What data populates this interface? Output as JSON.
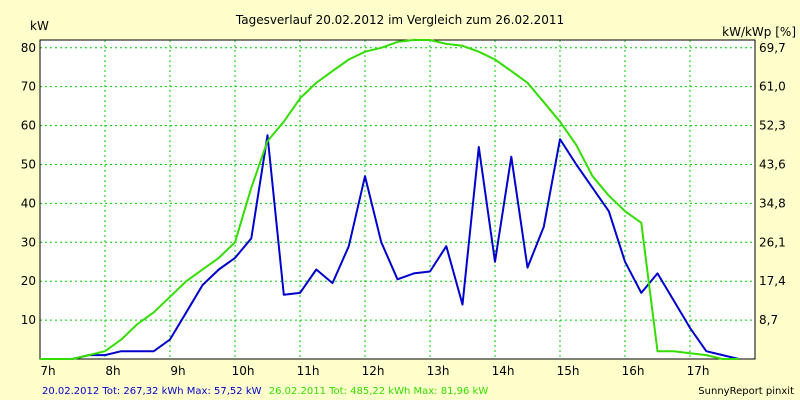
{
  "chart_data": {
    "type": "line",
    "title": "Tagesverlauf 20.02.2012 im Vergleich zum 26.02.2011",
    "ylabel_left": "kW",
    "ylabel_right": "kW/kWp [%]",
    "x_ticks": [
      "7h",
      "8h",
      "9h",
      "10h",
      "11h",
      "12h",
      "13h",
      "14h",
      "15h",
      "16h",
      "17h"
    ],
    "x_range": [
      7,
      18
    ],
    "y_ticks_left": [
      10,
      20,
      30,
      40,
      50,
      60,
      70,
      80
    ],
    "y_ticks_right": [
      "8,7",
      "17,4",
      "26,1",
      "34,8",
      "43,6",
      "52,3",
      "61,0",
      "69,7"
    ],
    "ylim": [
      0,
      82
    ],
    "grid": true,
    "series": [
      {
        "color": "#0000cc",
        "x": [
          7,
          7.25,
          7.5,
          7.75,
          8.0,
          8.25,
          8.5,
          8.75,
          9.0,
          9.25,
          9.5,
          9.75,
          10.0,
          10.25,
          10.5,
          10.75,
          11.0,
          11.25,
          11.5,
          11.75,
          12.0,
          12.25,
          12.5,
          12.75,
          13.0,
          13.25,
          13.5,
          13.75,
          14.0,
          14.25,
          14.5,
          14.75,
          15.0,
          15.25,
          15.5,
          15.75,
          16.0,
          16.25,
          16.5,
          16.75,
          17.0,
          17.25,
          17.5,
          17.75
        ],
        "values": [
          0,
          0,
          0,
          1,
          1,
          2,
          2,
          2,
          5,
          12,
          19,
          23,
          26,
          31,
          57.5,
          16.5,
          17,
          23,
          19.5,
          29,
          47,
          30,
          20.5,
          22,
          22.5,
          29,
          14,
          54.5,
          25,
          52,
          23.5,
          34,
          56.5,
          50,
          44,
          38,
          25,
          17,
          22,
          15,
          8,
          2,
          1,
          0
        ]
      },
      {
        "color": "#33dd00",
        "x": [
          7,
          7.25,
          7.5,
          7.75,
          8.0,
          8.25,
          8.5,
          8.75,
          9.0,
          9.25,
          9.5,
          9.75,
          10.0,
          10.25,
          10.5,
          10.75,
          11.0,
          11.25,
          11.5,
          11.75,
          12.0,
          12.25,
          12.5,
          12.75,
          13.0,
          13.25,
          13.5,
          13.75,
          14.0,
          14.25,
          14.5,
          14.75,
          15.0,
          15.25,
          15.5,
          15.75,
          16.0,
          16.25,
          16.5,
          16.75,
          17.0,
          17.25,
          17.5,
          17.75
        ],
        "values": [
          0,
          0,
          0,
          1,
          2,
          5,
          9,
          12,
          16,
          20,
          23,
          26,
          30,
          44,
          56,
          61,
          67,
          71,
          74,
          77,
          79,
          80,
          81.5,
          82,
          82,
          81,
          80.5,
          79,
          77,
          74,
          71,
          66,
          61,
          55,
          47,
          42,
          38,
          35,
          2,
          2,
          1.5,
          1,
          0,
          0
        ]
      }
    ]
  },
  "footer": {
    "series1_summary": "20.02.2012 Tot: 267,32 kWh Max: 57,52 kW",
    "series2_summary": "26.02.2011 Tot: 485,22 kWh Max: 81,96 kW",
    "brand": "SunnyReport pinxit"
  },
  "colors": {
    "background": "#ffffcc",
    "grid": "#00cc00",
    "axis": "#000000"
  }
}
